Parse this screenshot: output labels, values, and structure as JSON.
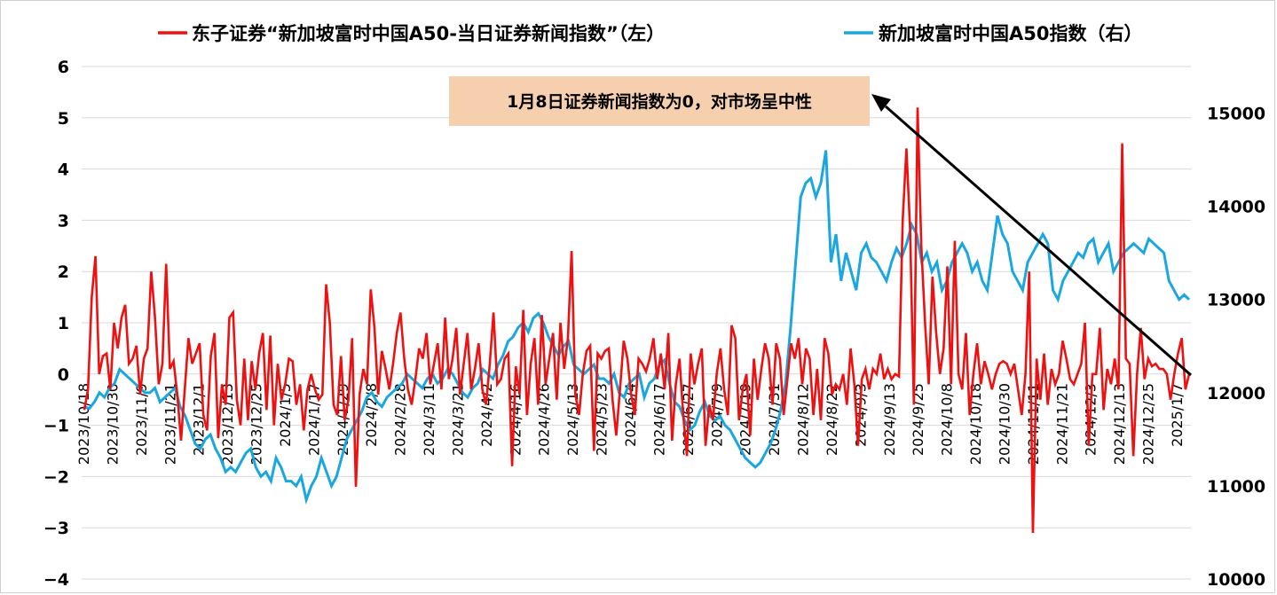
{
  "chart_data": {
    "type": "line",
    "title": "",
    "left_axis": {
      "ylim": [
        -4,
        6
      ],
      "ticks": [
        -4,
        -3,
        -2,
        -1,
        0,
        1,
        2,
        3,
        4,
        5,
        6
      ]
    },
    "right_axis": {
      "ylim": [
        10000,
        15500
      ],
      "ticks": [
        10000,
        11000,
        12000,
        13000,
        14000,
        15000
      ]
    },
    "x_tick_labels": [
      "2023/10/18",
      "2023/10/30",
      "2023/11/9",
      "2023/11/21",
      "2023/12/1",
      "2023/12/13",
      "2023/12/25",
      "2024/1/5",
      "2024/1/17",
      "2024/1/29",
      "2024/2/8",
      "2024/2/28",
      "2024/3/11",
      "2024/3/21",
      "2024/4/2",
      "2024/4/16",
      "2024/4/26",
      "2024/5/13",
      "2024/5/23",
      "2024/6/4",
      "2024/6/17",
      "2024/6/27",
      "2024/7/9",
      "2024/7/19",
      "2024/7/31",
      "2024/8/12",
      "2024/8/22",
      "2024/9/3",
      "2024/9/13",
      "2024/9/25",
      "2024/10/8",
      "2024/10/18",
      "2024/10/30",
      "2024/11/11",
      "2024/11/21",
      "2024/12/3",
      "2024/12/13",
      "2024/12/25",
      "2025/1/7"
    ],
    "legend": [
      {
        "name": "东子证券“新加坡富时中国A50-当日证券新闻指数”（左）",
        "color": "#ee1111"
      },
      {
        "name": "新加坡富时中国A50指数（右）",
        "color": "#1aa7e0"
      }
    ],
    "series": [
      {
        "name": "东子证券“新加坡富时中国A50-当日证券新闻指数”（左）",
        "axis": "left",
        "color": "#ee1111",
        "values": [
          -0.7,
          -0.3,
          1.5,
          2.3,
          0.0,
          0.35,
          0.4,
          -0.3,
          1.0,
          0.5,
          1.1,
          1.35,
          0.2,
          0.3,
          0.55,
          -0.4,
          0.3,
          0.5,
          2.0,
          1.1,
          -0.2,
          0.2,
          2.15,
          0.1,
          0.25,
          -0.4,
          -1.3,
          -0.3,
          0.7,
          0.2,
          0.4,
          0.6,
          -0.8,
          -1.1,
          0.35,
          0.8,
          -1.25,
          -0.2,
          -0.6,
          1.1,
          1.2,
          -0.5,
          -1.0,
          0.3,
          -0.9,
          0.25,
          -0.3,
          0.4,
          0.8,
          -0.7,
          0.75,
          -1.0,
          0.2,
          -0.5,
          -0.2,
          0.3,
          0.25,
          -0.6,
          -0.2,
          -1.1,
          -0.3,
          0.0,
          -0.3,
          -0.5,
          -0.4,
          1.75,
          1.0,
          -0.6,
          -0.8,
          0.35,
          -0.9,
          -0.5,
          0.7,
          -2.2,
          -0.4,
          0.1,
          -0.2,
          1.65,
          0.9,
          -0.4,
          0.45,
          0.1,
          -0.3,
          0.2,
          0.8,
          1.2,
          0.3,
          -0.3,
          -0.6,
          -0.1,
          0.5,
          0.3,
          0.8,
          -0.2,
          0.2,
          0.6,
          -0.3,
          1.1,
          -0.1,
          0.3,
          0.9,
          -0.4,
          0.2,
          0.8,
          -0.3,
          0.1,
          0.6,
          -0.3,
          -0.6,
          0.2,
          1.2,
          -0.2,
          -0.1,
          0.3,
          0.4,
          -1.8,
          0.15,
          -0.4,
          1.25,
          -0.8,
          0.2,
          0.7,
          -0.6,
          1.15,
          -0.2,
          0.3,
          0.8,
          -0.5,
          1.0,
          0.1,
          0.7,
          2.4,
          -0.4,
          -0.8,
          0.0,
          0.45,
          0.55,
          -1.5,
          0.4,
          0.3,
          0.45,
          0.5,
          -0.5,
          -1.2,
          -0.3,
          0.65,
          0.3,
          -0.4,
          -0.8,
          0.3,
          0.2,
          0.05,
          0.3,
          0.7,
          -0.1,
          0.4,
          -0.3,
          0.8,
          -1.3,
          -0.2,
          0.3,
          -0.8,
          -1.6,
          0.4,
          -0.2,
          0.2,
          0.5,
          -1.4,
          -0.6,
          -0.9,
          0.0,
          0.5,
          -0.3,
          -0.8,
          0.95,
          0.7,
          -0.9,
          -0.3,
          0.0,
          -1.2,
          0.3,
          -0.5,
          0.1,
          0.6,
          0.3,
          -0.6,
          0.6,
          0.3,
          -0.8,
          -0.1,
          0.6,
          0.3,
          0.7,
          -0.2,
          0.5,
          0.3,
          -0.8,
          0.1,
          -0.9,
          0.7,
          0.4,
          -0.4,
          -0.2,
          -0.3,
          0.0,
          -0.6,
          0.5,
          -0.2,
          -1.4,
          -0.1,
          0.1,
          -0.3,
          0.1,
          0.0,
          0.4,
          -0.1,
          0.1,
          -0.1,
          0.0,
          -0.05,
          3.0,
          4.4,
          2.8,
          -0.6,
          5.2,
          2.5,
          1.0,
          -0.2,
          1.9,
          0.8,
          0.0,
          0.5,
          2.1,
          -0.2,
          2.6,
          0.0,
          -0.3,
          0.8,
          -0.8,
          0.0,
          0.6,
          -0.2,
          0.25,
          0.0,
          -0.3,
          0.0,
          0.2,
          0.25,
          0.2,
          0.0,
          0.2,
          -0.3,
          -0.8,
          0.0,
          2.0,
          -3.1,
          0.3,
          -0.5,
          0.4,
          -0.6,
          0.1,
          -0.2,
          0.0,
          0.65,
          0.3,
          -0.1,
          -0.2,
          0.0,
          0.2,
          1.0,
          -1.4,
          0.0,
          0.0,
          0.9,
          -0.7,
          0.1,
          -0.2,
          0.3,
          -0.3,
          4.5,
          0.3,
          0.2,
          -1.6,
          0.0,
          0.9,
          -0.1,
          0.3,
          0.15,
          0.2,
          0.1,
          0.1,
          0.0,
          -0.5,
          0.0,
          0.4,
          0.7,
          -0.3,
          0.0
        ]
      },
      {
        "name": "新加坡富时中国A50指数（右）",
        "axis": "right",
        "color": "#1aa7e0",
        "values": [
          11850,
          11830,
          11900,
          12000,
          11950,
          12050,
          12100,
          12250,
          12200,
          12150,
          12100,
          12050,
          12000,
          12000,
          12050,
          11900,
          11950,
          12000,
          12050,
          11850,
          11750,
          11600,
          11450,
          11400,
          11500,
          11550,
          11400,
          11300,
          11150,
          11200,
          11150,
          11250,
          11350,
          11400,
          11200,
          11100,
          11150,
          11050,
          11300,
          11200,
          11050,
          11050,
          11000,
          11100,
          10850,
          11000,
          11100,
          11300,
          11150,
          11000,
          11100,
          11300,
          11500,
          11600,
          11700,
          11800,
          11950,
          12000,
          11900,
          11850,
          11950,
          12000,
          12050,
          12100,
          12200,
          12150,
          12100,
          12050,
          12150,
          12200,
          12100,
          12150,
          12250,
          12200,
          12100,
          12000,
          11950,
          12050,
          12100,
          12250,
          12200,
          12150,
          12300,
          12400,
          12550,
          12600,
          12700,
          12750,
          12650,
          12800,
          12850,
          12750,
          12600,
          12500,
          12400,
          12500,
          12550,
          12300,
          12250,
          12200,
          12250,
          12300,
          12150,
          12150,
          12100,
          12200,
          12000,
          11950,
          12100,
          12150,
          12200,
          11950,
          12100,
          12150,
          12300,
          12350,
          12100,
          11900,
          11850,
          11700,
          11600,
          11650,
          11800,
          11900,
          11750,
          11700,
          11750,
          11650,
          11600,
          11500,
          11400,
          11300,
          11250,
          11200,
          11250,
          11350,
          11450,
          11600,
          11800,
          12100,
          12700,
          13400,
          14100,
          14250,
          14300,
          14100,
          14250,
          14600,
          13400,
          13700,
          13200,
          13500,
          13300,
          13100,
          13500,
          13600,
          13450,
          13400,
          13300,
          13200,
          13400,
          13550,
          13450,
          13600,
          13800,
          13700,
          13400,
          13500,
          13300,
          13400,
          13100,
          13200,
          13400,
          13500,
          13600,
          13500,
          13300,
          13400,
          13200,
          13100,
          13500,
          13900,
          13700,
          13600,
          13300,
          13200,
          13100,
          13400,
          13500,
          13600,
          13700,
          13600,
          13100,
          13000,
          13200,
          13300,
          13400,
          13500,
          13450,
          13600,
          13650,
          13400,
          13500,
          13600,
          13300,
          13400,
          13500,
          13550,
          13600,
          13550,
          13500,
          13650,
          13600,
          13550,
          13500,
          13200,
          13100,
          13000,
          13050,
          13000
        ]
      }
    ],
    "annotation": {
      "text": "1月8日证券新闻指数为0，对市场呈中性",
      "bg_color": "#f5cfae"
    }
  }
}
